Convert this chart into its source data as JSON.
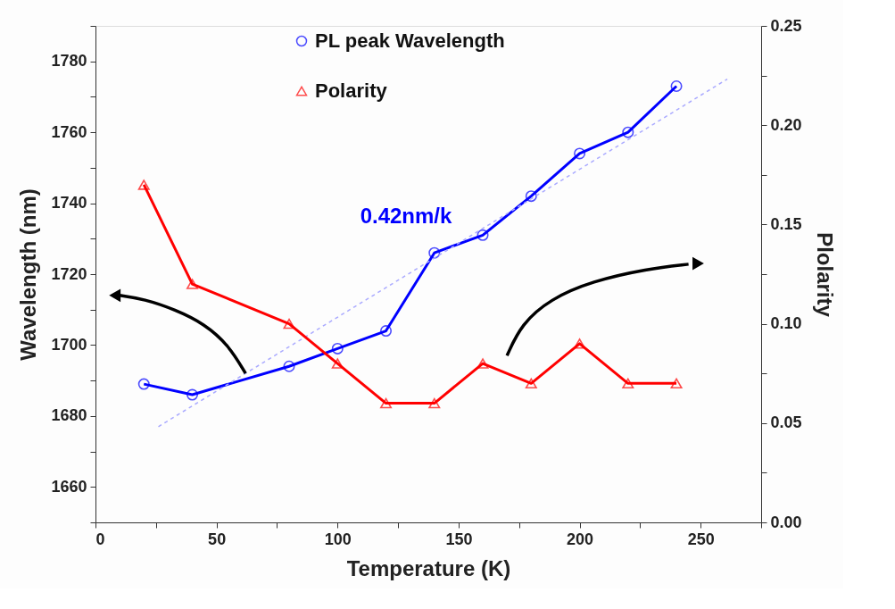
{
  "chart_data": {
    "type": "line",
    "xlabel": "Temperature (K)",
    "ylabel": "Wavelength (nm)",
    "y2label": "Plolarity",
    "x": [
      20,
      40,
      80,
      100,
      120,
      140,
      160,
      180,
      200,
      220,
      240
    ],
    "xlim": [
      0,
      275
    ],
    "xticks": [
      0,
      {
        "value": 25,
        "label": null
      },
      50,
      {
        "value": 75,
        "label": null
      },
      100,
      {
        "value": 125,
        "label": null
      },
      150,
      {
        "value": 175,
        "label": null
      },
      200,
      {
        "value": 225,
        "label": null
      },
      250,
      {
        "value": 275,
        "label": null
      }
    ],
    "ylim": [
      1650,
      1790
    ],
    "yticks": [
      {
        "value": 1650,
        "label": null
      },
      1660,
      {
        "value": 1670,
        "label": null
      },
      1680,
      {
        "value": 1690,
        "label": null
      },
      1700,
      {
        "value": 1710,
        "label": null
      },
      1720,
      {
        "value": 1730,
        "label": null
      },
      1740,
      {
        "value": 1750,
        "label": null
      },
      1760,
      {
        "value": 1770,
        "label": null
      },
      1780,
      {
        "value": 1790,
        "label": null
      }
    ],
    "y2lim": [
      0,
      0.25
    ],
    "y2ticks": [
      {
        "value": 0,
        "label": "0.00"
      },
      {
        "value": 0.025,
        "label": null
      },
      {
        "value": 0.05,
        "label": "0.05"
      },
      {
        "value": 0.075,
        "label": null
      },
      {
        "value": 0.1,
        "label": "0.10"
      },
      {
        "value": 0.125,
        "label": null
      },
      {
        "value": 0.15,
        "label": "0.15"
      },
      {
        "value": 0.175,
        "label": null
      },
      {
        "value": 0.2,
        "label": "0.20"
      },
      {
        "value": 0.225,
        "label": null
      },
      {
        "value": 0.25,
        "label": "0.25"
      }
    ],
    "grid": false,
    "legend": "top left",
    "series": [
      {
        "name": "PL peak Wavelength",
        "color": "#0000ff",
        "marker": "circle",
        "values": [
          1689,
          1686,
          1694,
          1699,
          1704,
          1726,
          1731,
          1742,
          1754,
          1760,
          1773
        ]
      },
      {
        "name": "Polarity",
        "color": "#ff0000",
        "marker": "triangle",
        "axis": "y2",
        "values": [
          0.17,
          0.12,
          0.1,
          0.08,
          0.06,
          0.06,
          0.08,
          0.07,
          0.09,
          0.07,
          0.07
        ]
      },
      {
        "type": "line",
        "color": "#aaaaff",
        "marker": "none",
        "line_style": "dashed",
        "x": [
          26,
          261
        ],
        "values": [
          1677,
          1775
        ]
      }
    ],
    "annotations": [
      "0.42nm/k"
    ]
  }
}
